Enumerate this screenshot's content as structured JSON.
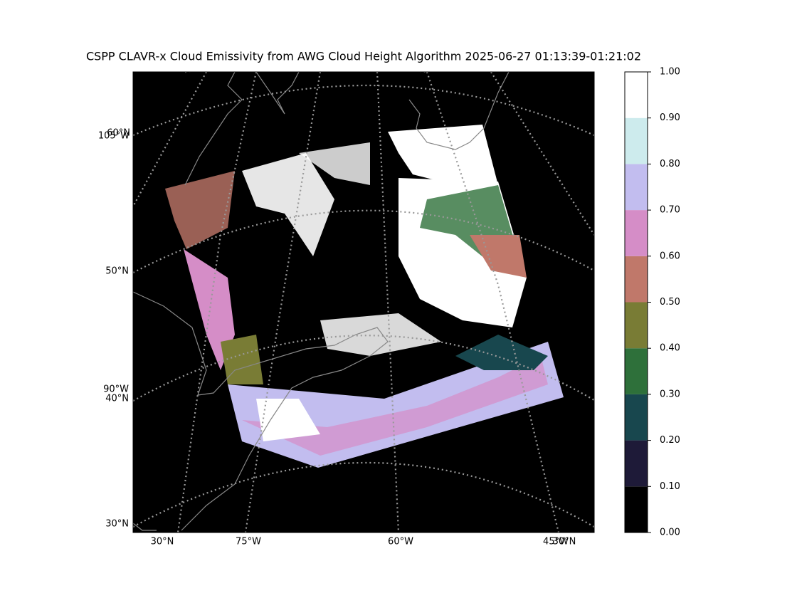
{
  "title": "CSPP CLAVR-x Cloud Emissivity from AWG Cloud Height Algorithm 2025-06-27 01:13:39-01:21:02",
  "map": {
    "left_labels": [
      "60°N",
      "105°W",
      "50°N",
      "90°W",
      "40°N",
      "30°N"
    ],
    "bottom_labels": [
      "30°N",
      "75°W",
      "60°W",
      "45°W",
      "30°N"
    ]
  },
  "colorbar": {
    "ticks": [
      {
        "value": 0,
        "label": "0.00"
      },
      {
        "value": 0.1,
        "label": "0.10"
      },
      {
        "value": 0.2,
        "label": "0.20"
      },
      {
        "value": 0.3,
        "label": "0.30"
      },
      {
        "value": 0.4,
        "label": "0.40"
      },
      {
        "value": 0.5,
        "label": "0.50"
      },
      {
        "value": 0.6,
        "label": "0.60"
      },
      {
        "value": 0.7,
        "label": "0.70"
      },
      {
        "value": 0.8,
        "label": "0.80"
      },
      {
        "value": 0.9,
        "label": "0.90"
      },
      {
        "value": 1,
        "label": "1.00"
      }
    ],
    "colors": [
      "#000000",
      "#1e1a38",
      "#18474e",
      "#2e703a",
      "#797c35",
      "#c0786a",
      "#d58dc7",
      "#c2bdef",
      "#cdebed",
      "#ffffff"
    ],
    "lim": [
      0,
      1
    ]
  }
}
